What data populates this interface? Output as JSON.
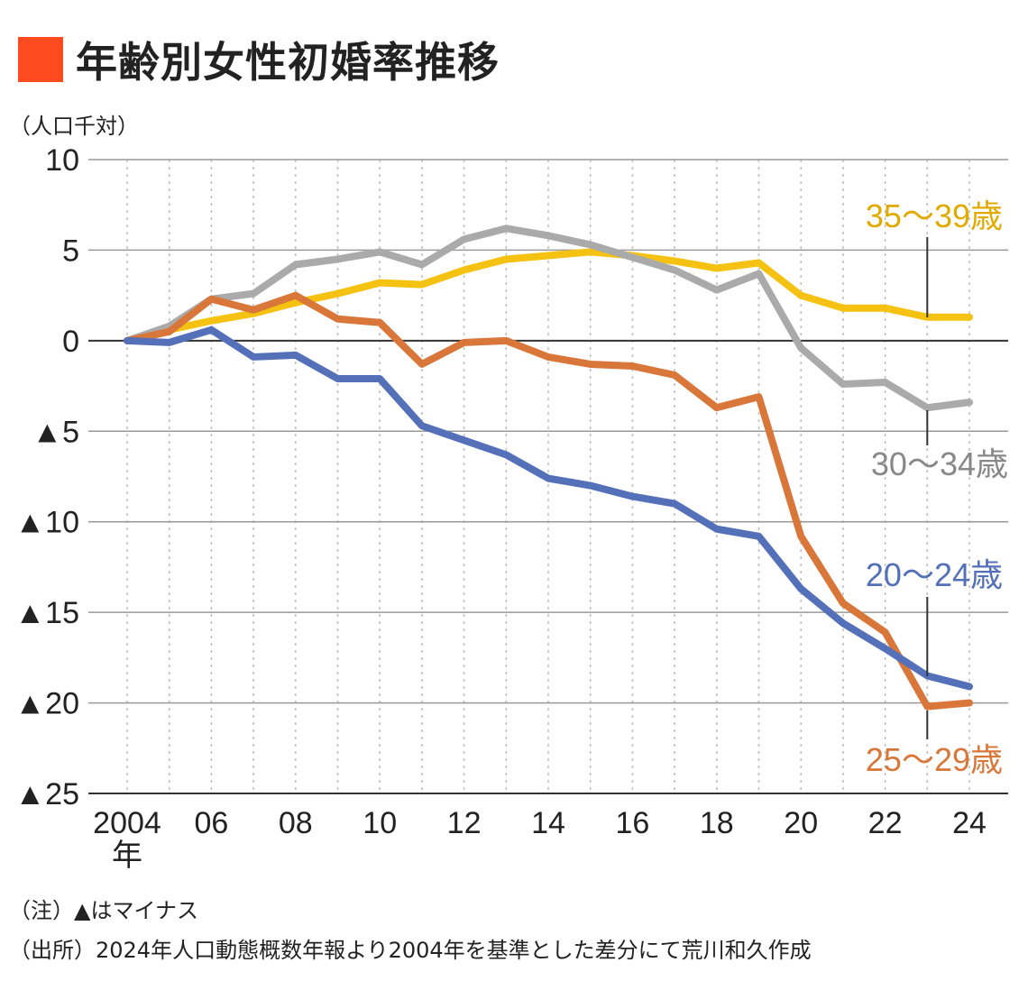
{
  "title": "年齢別女性初婚率推移",
  "unit_label": "（人口千対）",
  "notes": {
    "note1": "（注）▲はマイナス",
    "note2": "（出所）2024年人口動態概数年報より2004年を基準とした差分にて荒川和久作成"
  },
  "chart_data": {
    "type": "line",
    "title": "年齢別女性初婚率推移",
    "ylabel": "（人口千対）",
    "ylim": [
      -25,
      10
    ],
    "y_ticks": [
      10,
      5,
      0,
      -5,
      -10,
      -15,
      -20,
      -25
    ],
    "y_tick_labels": [
      "10",
      "5",
      "0",
      "▲5",
      "▲10",
      "▲15",
      "▲20",
      "▲25"
    ],
    "x": [
      2004,
      2005,
      2006,
      2007,
      2008,
      2009,
      2010,
      2011,
      2012,
      2013,
      2014,
      2015,
      2016,
      2017,
      2018,
      2019,
      2020,
      2021,
      2022,
      2023,
      2024
    ],
    "x_ticks": [
      2004,
      2006,
      2008,
      2010,
      2012,
      2014,
      2016,
      2018,
      2020,
      2022,
      2024
    ],
    "x_tick_labels": [
      "2004",
      "06",
      "08",
      "10",
      "12",
      "14",
      "16",
      "18",
      "20",
      "22",
      "24"
    ],
    "x_first_suffix": "年",
    "grid": true,
    "series": [
      {
        "name": "35〜39歳",
        "color": "#f5c211",
        "label_color": "#e0aa00",
        "values": [
          0,
          0.6,
          1.1,
          1.5,
          2.1,
          2.6,
          3.2,
          3.1,
          3.9,
          4.5,
          4.7,
          4.9,
          4.7,
          4.4,
          4.0,
          4.3,
          2.5,
          1.8,
          1.8,
          1.3,
          1.3
        ]
      },
      {
        "name": "30〜34歳",
        "color": "#aaaaaa",
        "label_color": "#888888",
        "values": [
          0,
          0.8,
          2.3,
          2.6,
          4.2,
          4.5,
          4.9,
          4.2,
          5.6,
          6.2,
          5.8,
          5.3,
          4.6,
          3.9,
          2.8,
          3.7,
          -0.4,
          -2.4,
          -2.3,
          -3.7,
          -3.4
        ]
      },
      {
        "name": "25〜29歳",
        "color": "#d9773a",
        "label_color": "#d9773a",
        "values": [
          0,
          0.5,
          2.3,
          1.7,
          2.5,
          1.2,
          1.0,
          -1.3,
          -0.1,
          0,
          -0.9,
          -1.3,
          -1.4,
          -1.9,
          -3.7,
          -3.1,
          -10.8,
          -14.5,
          -16.1,
          -20.2,
          -20.0
        ]
      },
      {
        "name": "20〜24歳",
        "color": "#5470b8",
        "label_color": "#5470b8",
        "values": [
          0,
          -0.1,
          0.6,
          -0.9,
          -0.8,
          -2.1,
          -2.1,
          -4.7,
          -5.5,
          -6.3,
          -7.6,
          -8.0,
          -8.6,
          -9.0,
          -10.4,
          -10.8,
          -13.7,
          -15.6,
          -17.0,
          -18.5,
          -19.1
        ]
      }
    ]
  }
}
